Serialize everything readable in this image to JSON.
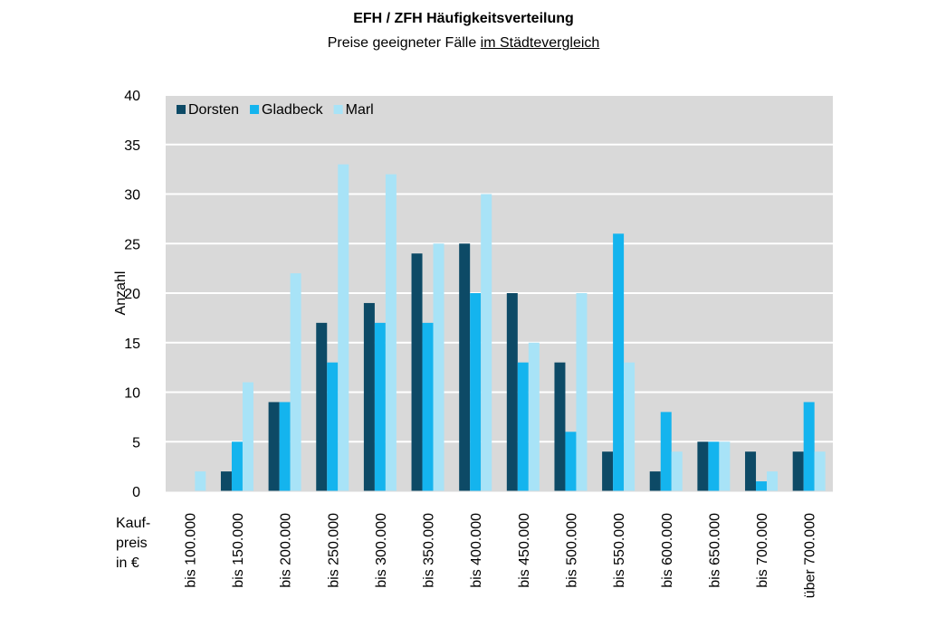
{
  "title": "EFH / ZFH Häufigkeitsverteilung",
  "subtitle_pre": "Preise geeigneter Fälle ",
  "subtitle_underlined": "im Städtevergleich",
  "chart_data": {
    "type": "bar",
    "title": "EFH / ZFH Häufigkeitsverteilung",
    "subtitle": "Preise geeigneter Fälle im Städtevergleich",
    "ylabel": "Anzahl",
    "xlabel_lines": [
      "Kauf-",
      "preis",
      "in €"
    ],
    "ylim": [
      0,
      40
    ],
    "yticks": [
      0,
      5,
      10,
      15,
      20,
      25,
      30,
      35,
      40
    ],
    "grid": true,
    "legend_position": "top-left",
    "plot_background": "#d9d9d9",
    "categories": [
      "bis 100.000",
      "bis 150.000",
      "bis 200.000",
      "bis 250.000",
      "bis 300.000",
      "bis 350.000",
      "bis 400.000",
      "bis 450.000",
      "bis 500.000",
      "bis 550.000",
      "bis 600.000",
      "bis 650.000",
      "bis 700.000",
      "über 700.000"
    ],
    "series": [
      {
        "name": "Dorsten",
        "color": "#0d4a66",
        "values": [
          0,
          2,
          9,
          17,
          19,
          24,
          25,
          20,
          13,
          4,
          2,
          5,
          4,
          4
        ]
      },
      {
        "name": "Gladbeck",
        "color": "#14b4ee",
        "values": [
          0,
          5,
          9,
          13,
          17,
          17,
          20,
          13,
          6,
          26,
          8,
          5,
          1,
          9
        ]
      },
      {
        "name": "Marl",
        "color": "#a8e3f7",
        "values": [
          2,
          11,
          22,
          33,
          32,
          25,
          30,
          15,
          20,
          13,
          4,
          5,
          2,
          4
        ]
      }
    ]
  }
}
